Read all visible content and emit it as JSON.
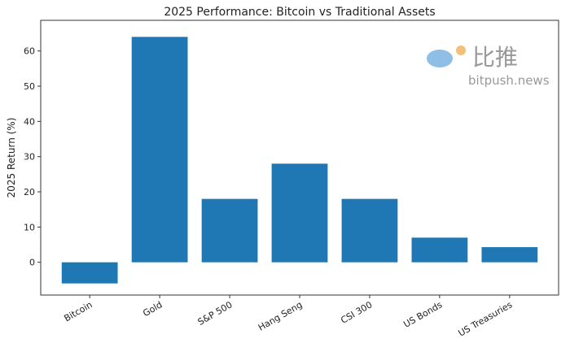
{
  "chart_data": {
    "type": "bar",
    "title": "2025 Performance: Bitcoin vs Traditional Assets",
    "xlabel": "",
    "ylabel": "2025 Return (%)",
    "categories": [
      "Bitcoin",
      "Gold",
      "S&P 500",
      "Hang Seng",
      "CSI 300",
      "US Bonds",
      "US Treasuries"
    ],
    "values": [
      -6,
      64,
      18,
      28,
      18,
      7,
      4.3
    ],
    "ylim": [
      -9.3,
      68.7
    ],
    "yticks": [
      0,
      10,
      20,
      30,
      40,
      50,
      60
    ],
    "grid": false,
    "bar_color": "#1f77b4"
  },
  "watermark": {
    "cn": "比推",
    "site": "bitpush.news"
  }
}
